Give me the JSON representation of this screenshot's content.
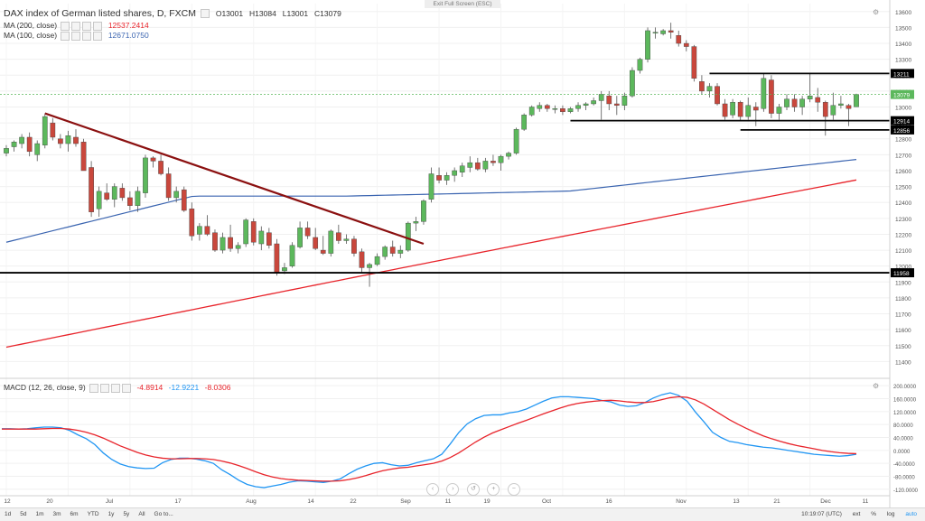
{
  "window": {
    "fullscreen_hint": "Exit Full Screen (ESC)"
  },
  "legend": {
    "title": "DAX index of German listed shares, D, FXCM",
    "ohlc": {
      "o": "O13001",
      "h": "H13084",
      "l": "L13001",
      "c": "C13079"
    },
    "ma200": {
      "label": "MA (200, close)",
      "value": "12537.2414"
    },
    "ma100": {
      "label": "MA (100, close)",
      "value": "12671.0750"
    },
    "macd": {
      "label": "MACD (12, 26, close, 9)",
      "v1": "-4.8914",
      "v2": "-12.9221",
      "v3": "-8.0306"
    }
  },
  "colors": {
    "up": "#5cb85c",
    "down": "#c9473c",
    "ma200": "#e8242b",
    "ma100": "#3a64b0",
    "trend": "#8b1010",
    "macd": "#2196f3",
    "signal": "#e8242b",
    "level": "#000000",
    "price": "#5cb85c"
  },
  "chart_data": [
    {
      "type": "candlestick",
      "ylim": [
        11300,
        13650
      ],
      "yticks": [
        11400,
        11500,
        11600,
        11700,
        11800,
        11900,
        12000,
        12100,
        12200,
        12300,
        12400,
        12500,
        12600,
        12700,
        12800,
        12900,
        13000,
        13100,
        13200,
        13300,
        13400,
        13500,
        13600
      ],
      "xtick_labels": [
        "12",
        "20",
        "Jul",
        "17",
        "Aug",
        "14",
        "22",
        "Sep",
        "11",
        "19",
        "Oct",
        "16",
        "Nov",
        "13",
        "21",
        "Dec",
        "11"
      ],
      "level_labels": [
        "13211",
        "12914",
        "12856",
        "11958"
      ],
      "current_price": "13079",
      "candles": [
        [
          12710,
          12760,
          12690,
          12740
        ],
        [
          12750,
          12790,
          12720,
          12780
        ],
        [
          12770,
          12830,
          12740,
          12810
        ],
        [
          12810,
          12840,
          12690,
          12720
        ],
        [
          12700,
          12790,
          12660,
          12770
        ],
        [
          12760,
          12960,
          12740,
          12940
        ],
        [
          12900,
          12930,
          12790,
          12810
        ],
        [
          12800,
          12830,
          12740,
          12770
        ],
        [
          12770,
          12850,
          12720,
          12820
        ],
        [
          12810,
          12860,
          12750,
          12770
        ],
        [
          12780,
          12800,
          12600,
          12600
        ],
        [
          12620,
          12660,
          12310,
          12340
        ],
        [
          12360,
          12500,
          12310,
          12470
        ],
        [
          12460,
          12520,
          12410,
          12420
        ],
        [
          12420,
          12520,
          12370,
          12500
        ],
        [
          12490,
          12520,
          12410,
          12430
        ],
        [
          12430,
          12470,
          12350,
          12380
        ],
        [
          12380,
          12500,
          12340,
          12470
        ],
        [
          12460,
          12700,
          12430,
          12680
        ],
        [
          12680,
          12690,
          12620,
          12660
        ],
        [
          12660,
          12700,
          12570,
          12580
        ],
        [
          12580,
          12620,
          12410,
          12430
        ],
        [
          12430,
          12500,
          12400,
          12470
        ],
        [
          12480,
          12500,
          12340,
          12350
        ],
        [
          12360,
          12400,
          12160,
          12190
        ],
        [
          12200,
          12270,
          12160,
          12250
        ],
        [
          12250,
          12320,
          12190,
          12200
        ],
        [
          12210,
          12230,
          12090,
          12100
        ],
        [
          12100,
          12210,
          12080,
          12180
        ],
        [
          12180,
          12260,
          12090,
          12110
        ],
        [
          12110,
          12150,
          12080,
          12130
        ],
        [
          12140,
          12300,
          12120,
          12290
        ],
        [
          12280,
          12300,
          12130,
          12150
        ],
        [
          12140,
          12250,
          12100,
          12220
        ],
        [
          12210,
          12240,
          12110,
          12130
        ],
        [
          12140,
          12170,
          11940,
          11958
        ],
        [
          11970,
          12020,
          11950,
          11990
        ],
        [
          12000,
          12150,
          11990,
          12130
        ],
        [
          12120,
          12280,
          12110,
          12240
        ],
        [
          12240,
          12280,
          12170,
          12190
        ],
        [
          12180,
          12240,
          12100,
          12110
        ],
        [
          12100,
          12190,
          12070,
          12080
        ],
        [
          12080,
          12230,
          12060,
          12220
        ],
        [
          12210,
          12260,
          12140,
          12160
        ],
        [
          12160,
          12200,
          12140,
          12170
        ],
        [
          12170,
          12190,
          12060,
          12080
        ],
        [
          12090,
          12110,
          11960,
          11990
        ],
        [
          11990,
          12020,
          11870,
          12010
        ],
        [
          12010,
          12080,
          12000,
          12060
        ],
        [
          12060,
          12130,
          12040,
          12120
        ],
        [
          12120,
          12160,
          12060,
          12080
        ],
        [
          12080,
          12130,
          12050,
          12100
        ],
        [
          12100,
          12280,
          12090,
          12270
        ],
        [
          12270,
          12310,
          12220,
          12280
        ],
        [
          12280,
          12420,
          12260,
          12410
        ],
        [
          12420,
          12620,
          12400,
          12580
        ],
        [
          12570,
          12620,
          12520,
          12540
        ],
        [
          12540,
          12590,
          12510,
          12570
        ],
        [
          12570,
          12620,
          12530,
          12600
        ],
        [
          12590,
          12650,
          12560,
          12630
        ],
        [
          12620,
          12690,
          12590,
          12650
        ],
        [
          12650,
          12680,
          12600,
          12610
        ],
        [
          12610,
          12680,
          12590,
          12660
        ],
        [
          12660,
          12700,
          12630,
          12650
        ],
        [
          12650,
          12700,
          12600,
          12690
        ],
        [
          12690,
          12720,
          12670,
          12710
        ],
        [
          12710,
          12870,
          12700,
          12860
        ],
        [
          12860,
          12960,
          12850,
          12950
        ],
        [
          12950,
          13010,
          12940,
          13000
        ],
        [
          12990,
          13030,
          12970,
          13010
        ],
        [
          13010,
          13020,
          12970,
          12990
        ],
        [
          12990,
          13010,
          12960,
          12990
        ],
        [
          12990,
          13010,
          12950,
          12970
        ],
        [
          12970,
          13000,
          12960,
          12990
        ],
        [
          12990,
          13030,
          12970,
          13010
        ],
        [
          13010,
          13030,
          12980,
          13020
        ],
        [
          13020,
          13060,
          13010,
          13040
        ],
        [
          13040,
          13100,
          12920,
          13080
        ],
        [
          13070,
          13100,
          12980,
          13020
        ],
        [
          13020,
          13070,
          12950,
          13010
        ],
        [
          13010,
          13090,
          12980,
          13070
        ],
        [
          13070,
          13250,
          13060,
          13230
        ],
        [
          13230,
          13310,
          13210,
          13300
        ],
        [
          13300,
          13500,
          13280,
          13480
        ],
        [
          13470,
          13500,
          13430,
          13470
        ],
        [
          13460,
          13490,
          13450,
          13480
        ],
        [
          13480,
          13530,
          13430,
          13470
        ],
        [
          13450,
          13480,
          13380,
          13400
        ],
        [
          13400,
          13420,
          13350,
          13380
        ],
        [
          13380,
          13390,
          13160,
          13180
        ],
        [
          13160,
          13200,
          13080,
          13100
        ],
        [
          13100,
          13150,
          13060,
          13130
        ],
        [
          13130,
          13150,
          13010,
          13020
        ],
        [
          13020,
          13050,
          12920,
          12940
        ],
        [
          12950,
          13050,
          12930,
          13030
        ],
        [
          13030,
          13040,
          12910,
          12940
        ],
        [
          12940,
          13060,
          12920,
          13010
        ],
        [
          13000,
          13030,
          12880,
          12980
        ],
        [
          12990,
          13210,
          12970,
          13180
        ],
        [
          13170,
          13200,
          12930,
          12960
        ],
        [
          12960,
          13020,
          12920,
          13000
        ],
        [
          13000,
          13080,
          12980,
          13050
        ],
        [
          13050,
          13080,
          12970,
          13000
        ],
        [
          13000,
          13070,
          12950,
          13050
        ],
        [
          13050,
          13210,
          13030,
          13070
        ],
        [
          13060,
          13120,
          12970,
          13030
        ],
        [
          13030,
          13040,
          12820,
          12940
        ],
        [
          12950,
          13090,
          12920,
          13010
        ],
        [
          13010,
          13070,
          12990,
          13020
        ],
        [
          13010,
          13020,
          12880,
          12990
        ],
        [
          13001,
          13084,
          13001,
          13079
        ]
      ]
    },
    {
      "type": "line",
      "ylim": [
        -140,
        220
      ],
      "yticks_labels": [
        "200.0000",
        "160.0000",
        "120.0000",
        "80.0000",
        "40.0000",
        "0.0000",
        "-40.0000",
        "-80.0000",
        "-120.0000"
      ],
      "yticks": [
        200,
        160,
        120,
        80,
        40,
        0,
        -40,
        -80,
        -120
      ],
      "series": [
        {
          "name": "MACD",
          "values": [
            67,
            67,
            66,
            67,
            70,
            72,
            72,
            70,
            62,
            48,
            36,
            18,
            -8,
            -28,
            -42,
            -50,
            -54,
            -56,
            -55,
            -38,
            -28,
            -24,
            -24,
            -27,
            -32,
            -40,
            -60,
            -75,
            -92,
            -105,
            -112,
            -115,
            -110,
            -105,
            -98,
            -94,
            -95,
            -97,
            -99,
            -95,
            -88,
            -72,
            -58,
            -48,
            -40,
            -38,
            -44,
            -48,
            -46,
            -38,
            -32,
            -26,
            -12,
            20,
            55,
            82,
            98,
            108,
            110,
            110,
            116,
            120,
            128,
            140,
            152,
            162,
            166,
            166,
            164,
            162,
            160,
            154,
            150,
            140,
            136,
            138,
            148,
            162,
            172,
            178,
            170,
            152,
            118,
            88,
            56,
            40,
            28,
            24,
            18,
            14,
            10,
            8,
            4,
            0,
            -4,
            -8,
            -12,
            -14,
            -16,
            -18,
            -16,
            -12
          ]
        },
        {
          "name": "Signal",
          "values": [
            66,
            66,
            66,
            66,
            66,
            67,
            68,
            68,
            66,
            62,
            56,
            48,
            38,
            26,
            14,
            4,
            -6,
            -14,
            -20,
            -24,
            -26,
            -26,
            -25,
            -25,
            -26,
            -28,
            -33,
            -39,
            -47,
            -56,
            -66,
            -75,
            -82,
            -87,
            -90,
            -92,
            -93,
            -94,
            -95,
            -95,
            -94,
            -90,
            -85,
            -78,
            -70,
            -63,
            -58,
            -54,
            -52,
            -48,
            -44,
            -40,
            -33,
            -22,
            -8,
            9,
            26,
            41,
            54,
            64,
            74,
            84,
            93,
            103,
            113,
            122,
            131,
            139,
            145,
            149,
            152,
            154,
            155,
            153,
            150,
            148,
            148,
            151,
            157,
            163,
            166,
            164,
            156,
            143,
            127,
            111,
            95,
            81,
            68,
            56,
            45,
            36,
            28,
            21,
            15,
            10,
            5,
            0,
            -4,
            -7,
            -9,
            -10
          ]
        }
      ]
    }
  ],
  "bottom_bar": {
    "timeframes": [
      "1d",
      "5d",
      "1m",
      "3m",
      "6m",
      "YTD",
      "1y",
      "5y",
      "All",
      "Go to..."
    ],
    "time": "10:19:07 (UTC)",
    "options": [
      "ext",
      "%",
      "log",
      "auto"
    ]
  }
}
